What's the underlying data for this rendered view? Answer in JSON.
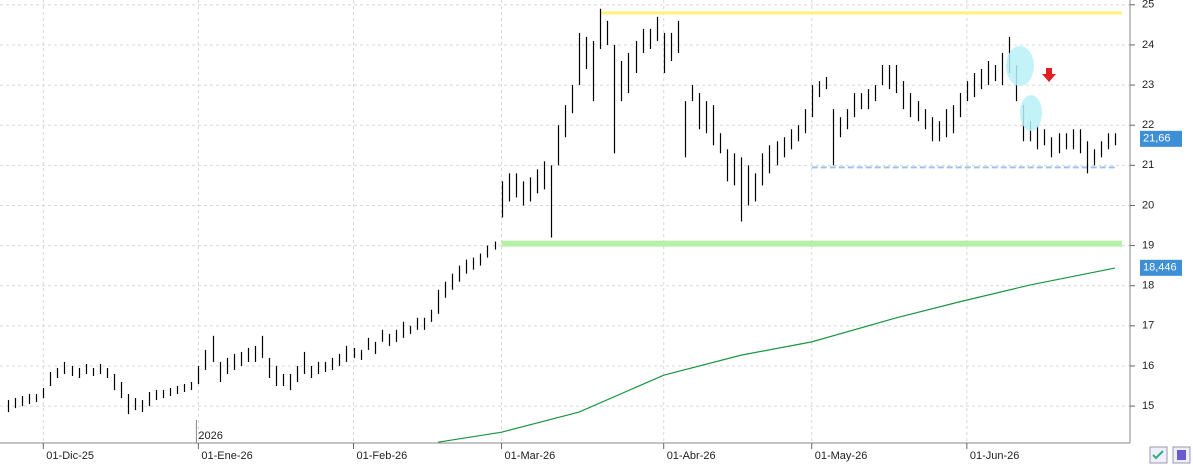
{
  "chart_data": {
    "type": "hilo",
    "xlim": [
      -1,
      159
    ],
    "ylim": [
      14.08,
      25.12
    ],
    "yticks": [
      15,
      16,
      17,
      18,
      19,
      20,
      21,
      22,
      23,
      24,
      25
    ],
    "xticks": [
      {
        "value": 5,
        "label": "01-Dic-25"
      },
      {
        "value": 27,
        "label": "01-Ene-26"
      },
      {
        "value": 49,
        "label": "01-Feb-26"
      },
      {
        "value": 70,
        "label": "01-Mar-26"
      },
      {
        "value": 93,
        "label": "01-Abr-26"
      },
      {
        "value": 114,
        "label": "01-May-26"
      },
      {
        "value": 136,
        "label": "01-Jun-26"
      }
    ],
    "grid": true,
    "annotations": [
      {
        "text": "2026",
        "x": 27
      }
    ],
    "series": [
      {
        "color": "#000000",
        "high": [
          15.15,
          15.2,
          15.25,
          15.3,
          15.3,
          15.45,
          15.85,
          15.95,
          16.1,
          16.0,
          15.95,
          16.05,
          15.95,
          16.05,
          15.95,
          15.8,
          15.6,
          15.3,
          15.2,
          15.15,
          15.35,
          15.4,
          15.4,
          15.45,
          15.5,
          15.55,
          15.6,
          16.0,
          16.4,
          16.75,
          16.1,
          16.2,
          16.3,
          16.35,
          16.45,
          16.5,
          16.75,
          16.2,
          16.0,
          15.8,
          15.8,
          16.0,
          16.35,
          16.0,
          16.1,
          16.1,
          16.2,
          16.3,
          16.5,
          16.45,
          16.4,
          16.7,
          16.6,
          16.9,
          16.8,
          16.9,
          17.1,
          17.0,
          17.2,
          17.2,
          17.4,
          17.9,
          18.1,
          18.3,
          18.5,
          18.65,
          18.7,
          18.8,
          19.0,
          19.1,
          20.6,
          20.8,
          20.8,
          20.6,
          20.7,
          20.9,
          21.1,
          21.0,
          22.0,
          22.5,
          23.0,
          24.3,
          24.2,
          24.1,
          24.9,
          24.6,
          24.0,
          23.6,
          23.8,
          24.1,
          24.4,
          24.4,
          24.7,
          24.3,
          24.3,
          24.6,
          22.6,
          23.0,
          22.8,
          22.6,
          22.5,
          21.8,
          21.4,
          21.3,
          21.2,
          21.0,
          20.8,
          21.3,
          21.5,
          21.6,
          21.7,
          21.9,
          22.0,
          22.4,
          23.0,
          23.1,
          23.2,
          22.4,
          22.2,
          22.4,
          22.8,
          22.8,
          22.9,
          23.0,
          23.5,
          23.5,
          23.5,
          23.1,
          22.8,
          22.6,
          22.4,
          22.2,
          22.1,
          22.4,
          22.5,
          22.8,
          23.1,
          23.3,
          23.4,
          23.6,
          23.5,
          23.8,
          24.2,
          23.5,
          22.5,
          22.1,
          22.0,
          21.9,
          21.7,
          21.8,
          21.8,
          21.9,
          21.9,
          21.6,
          21.4,
          21.6,
          21.8,
          21.8
        ],
        "low": [
          14.85,
          14.95,
          15.0,
          15.05,
          15.1,
          15.2,
          15.5,
          15.7,
          15.8,
          15.75,
          15.7,
          15.8,
          15.75,
          15.8,
          15.7,
          15.4,
          15.2,
          14.8,
          14.9,
          14.85,
          15.0,
          15.15,
          15.2,
          15.25,
          15.3,
          15.35,
          15.4,
          15.55,
          15.9,
          16.1,
          15.6,
          15.8,
          15.9,
          16.0,
          16.1,
          16.1,
          16.2,
          15.7,
          15.5,
          15.5,
          15.4,
          15.6,
          15.8,
          15.7,
          15.8,
          15.85,
          15.9,
          16.0,
          16.1,
          16.2,
          16.15,
          16.4,
          16.3,
          16.6,
          16.5,
          16.6,
          16.7,
          16.8,
          16.9,
          16.9,
          17.1,
          17.3,
          17.7,
          17.9,
          18.1,
          18.3,
          18.4,
          18.5,
          18.7,
          18.9,
          19.7,
          20.1,
          20.2,
          20.0,
          20.1,
          20.3,
          20.4,
          19.2,
          21.0,
          21.7,
          22.3,
          23.0,
          23.4,
          22.6,
          23.9,
          24.0,
          21.3,
          22.6,
          22.8,
          23.3,
          23.8,
          23.9,
          24.1,
          23.3,
          23.6,
          23.8,
          21.2,
          22.6,
          21.9,
          21.8,
          21.5,
          21.3,
          20.6,
          20.5,
          19.6,
          20.0,
          20.1,
          20.5,
          20.8,
          21.0,
          21.2,
          21.4,
          21.6,
          21.8,
          22.2,
          22.7,
          22.9,
          21.0,
          21.7,
          21.9,
          22.2,
          22.4,
          22.4,
          22.6,
          23.0,
          22.9,
          22.8,
          22.4,
          22.2,
          22.1,
          21.9,
          21.6,
          21.6,
          21.7,
          21.8,
          22.2,
          22.6,
          22.7,
          22.9,
          23.0,
          23.1,
          23.0,
          23.3,
          22.6,
          21.6,
          21.6,
          21.4,
          21.5,
          21.2,
          21.3,
          21.4,
          21.4,
          21.3,
          20.8,
          21.0,
          21.2,
          21.4,
          21.5
        ]
      }
    ],
    "lines": [
      {
        "color": "#1a9641",
        "x": [
          61,
          70,
          81,
          93,
          104,
          114,
          126,
          135,
          145,
          157
        ],
        "values": [
          14.1,
          14.35,
          14.85,
          15.77,
          16.27,
          16.6,
          17.2,
          17.6,
          18.02,
          18.44
        ]
      }
    ],
    "levels": [
      {
        "value": 24.8,
        "from": 84,
        "to": 158,
        "color": "#fff27a",
        "width": 3,
        "dash": false
      },
      {
        "value": 19.05,
        "from": 70,
        "to": 158,
        "color": "#b8f0a8",
        "width": 6,
        "dash": false
      },
      {
        "value": 20.95,
        "from": 114,
        "to": 157,
        "color": "#9fc4ec",
        "width": 2,
        "dash": true
      }
    ],
    "price_tags": [
      {
        "value": 21.66,
        "label": "21,66",
        "color": "#3d8fd6"
      },
      {
        "value": 18.446,
        "label": "18,446",
        "color": "#3d8fd6"
      }
    ]
  }
}
